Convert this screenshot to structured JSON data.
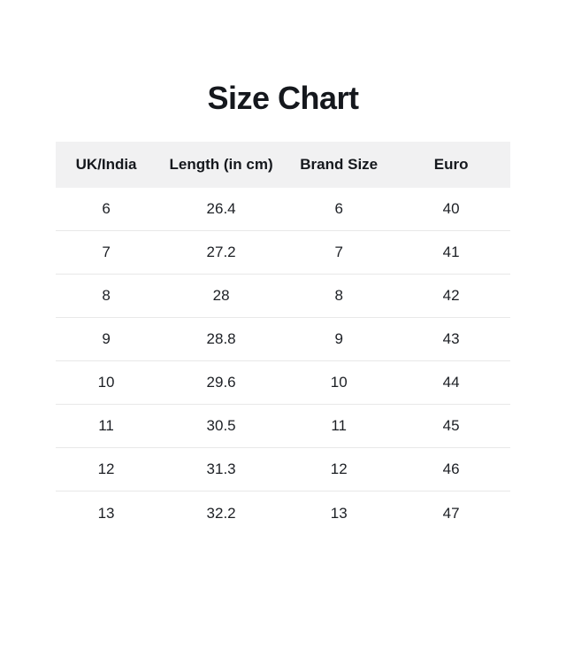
{
  "page_title": "Size Chart",
  "table": {
    "headers": [
      "UK/India",
      "Length (in cm)",
      "Brand Size",
      "Euro"
    ],
    "rows": [
      [
        "6",
        "26.4",
        "6",
        "40"
      ],
      [
        "7",
        "27.2",
        "7",
        "41"
      ],
      [
        "8",
        "28",
        "8",
        "42"
      ],
      [
        "9",
        "28.8",
        "9",
        "43"
      ],
      [
        "10",
        "29.6",
        "10",
        "44"
      ],
      [
        "11",
        "30.5",
        "11",
        "45"
      ],
      [
        "12",
        "31.3",
        "12",
        "46"
      ],
      [
        "13",
        "32.2",
        "13",
        "47"
      ]
    ]
  },
  "colors": {
    "background": "#ffffff",
    "header_bg": "#f1f1f2",
    "row_divider": "#e8e8e8",
    "text": "#16181c"
  },
  "chart_data": {
    "type": "table",
    "title": "Size Chart",
    "columns": [
      "UK/India",
      "Length (in cm)",
      "Brand Size",
      "Euro"
    ],
    "rows": [
      [
        6,
        26.4,
        6,
        40
      ],
      [
        7,
        27.2,
        7,
        41
      ],
      [
        8,
        28,
        8,
        42
      ],
      [
        9,
        28.8,
        9,
        43
      ],
      [
        10,
        29.6,
        10,
        44
      ],
      [
        11,
        30.5,
        11,
        45
      ],
      [
        12,
        31.3,
        12,
        46
      ],
      [
        13,
        32.2,
        13,
        47
      ]
    ],
    "layout": {
      "title_position": "top-center",
      "header_style": "light-gray-band",
      "row_dividers": true,
      "outer_border": false
    }
  }
}
